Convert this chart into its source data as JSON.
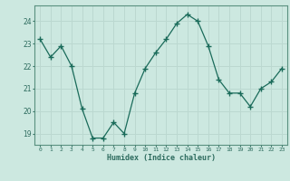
{
  "x": [
    0,
    1,
    2,
    3,
    4,
    5,
    6,
    7,
    8,
    9,
    10,
    11,
    12,
    13,
    14,
    15,
    16,
    17,
    18,
    19,
    20,
    21,
    22,
    23
  ],
  "y": [
    23.2,
    22.4,
    22.9,
    22.0,
    20.1,
    18.8,
    18.8,
    19.5,
    19.0,
    20.8,
    21.9,
    22.6,
    23.2,
    23.9,
    24.3,
    24.0,
    22.9,
    21.4,
    20.8,
    20.8,
    20.2,
    21.0,
    21.3,
    21.9
  ],
  "xlabel": "Humidex (Indice chaleur)",
  "bg_color": "#cce8e0",
  "line_color": "#1a6b5a",
  "grid_color": "#bbd8d0",
  "axis_color": "#2d6b5e",
  "spine_color": "#5a9080",
  "ylim": [
    18.5,
    24.7
  ],
  "xlim": [
    -0.5,
    23.5
  ],
  "yticks": [
    19,
    20,
    21,
    22,
    23,
    24
  ],
  "xtick_labels": [
    "0",
    "1",
    "2",
    "3",
    "4",
    "5",
    "6",
    "7",
    "8",
    "9",
    "10",
    "11",
    "12",
    "13",
    "14",
    "15",
    "16",
    "17",
    "18",
    "19",
    "20",
    "21",
    "22",
    "23"
  ]
}
